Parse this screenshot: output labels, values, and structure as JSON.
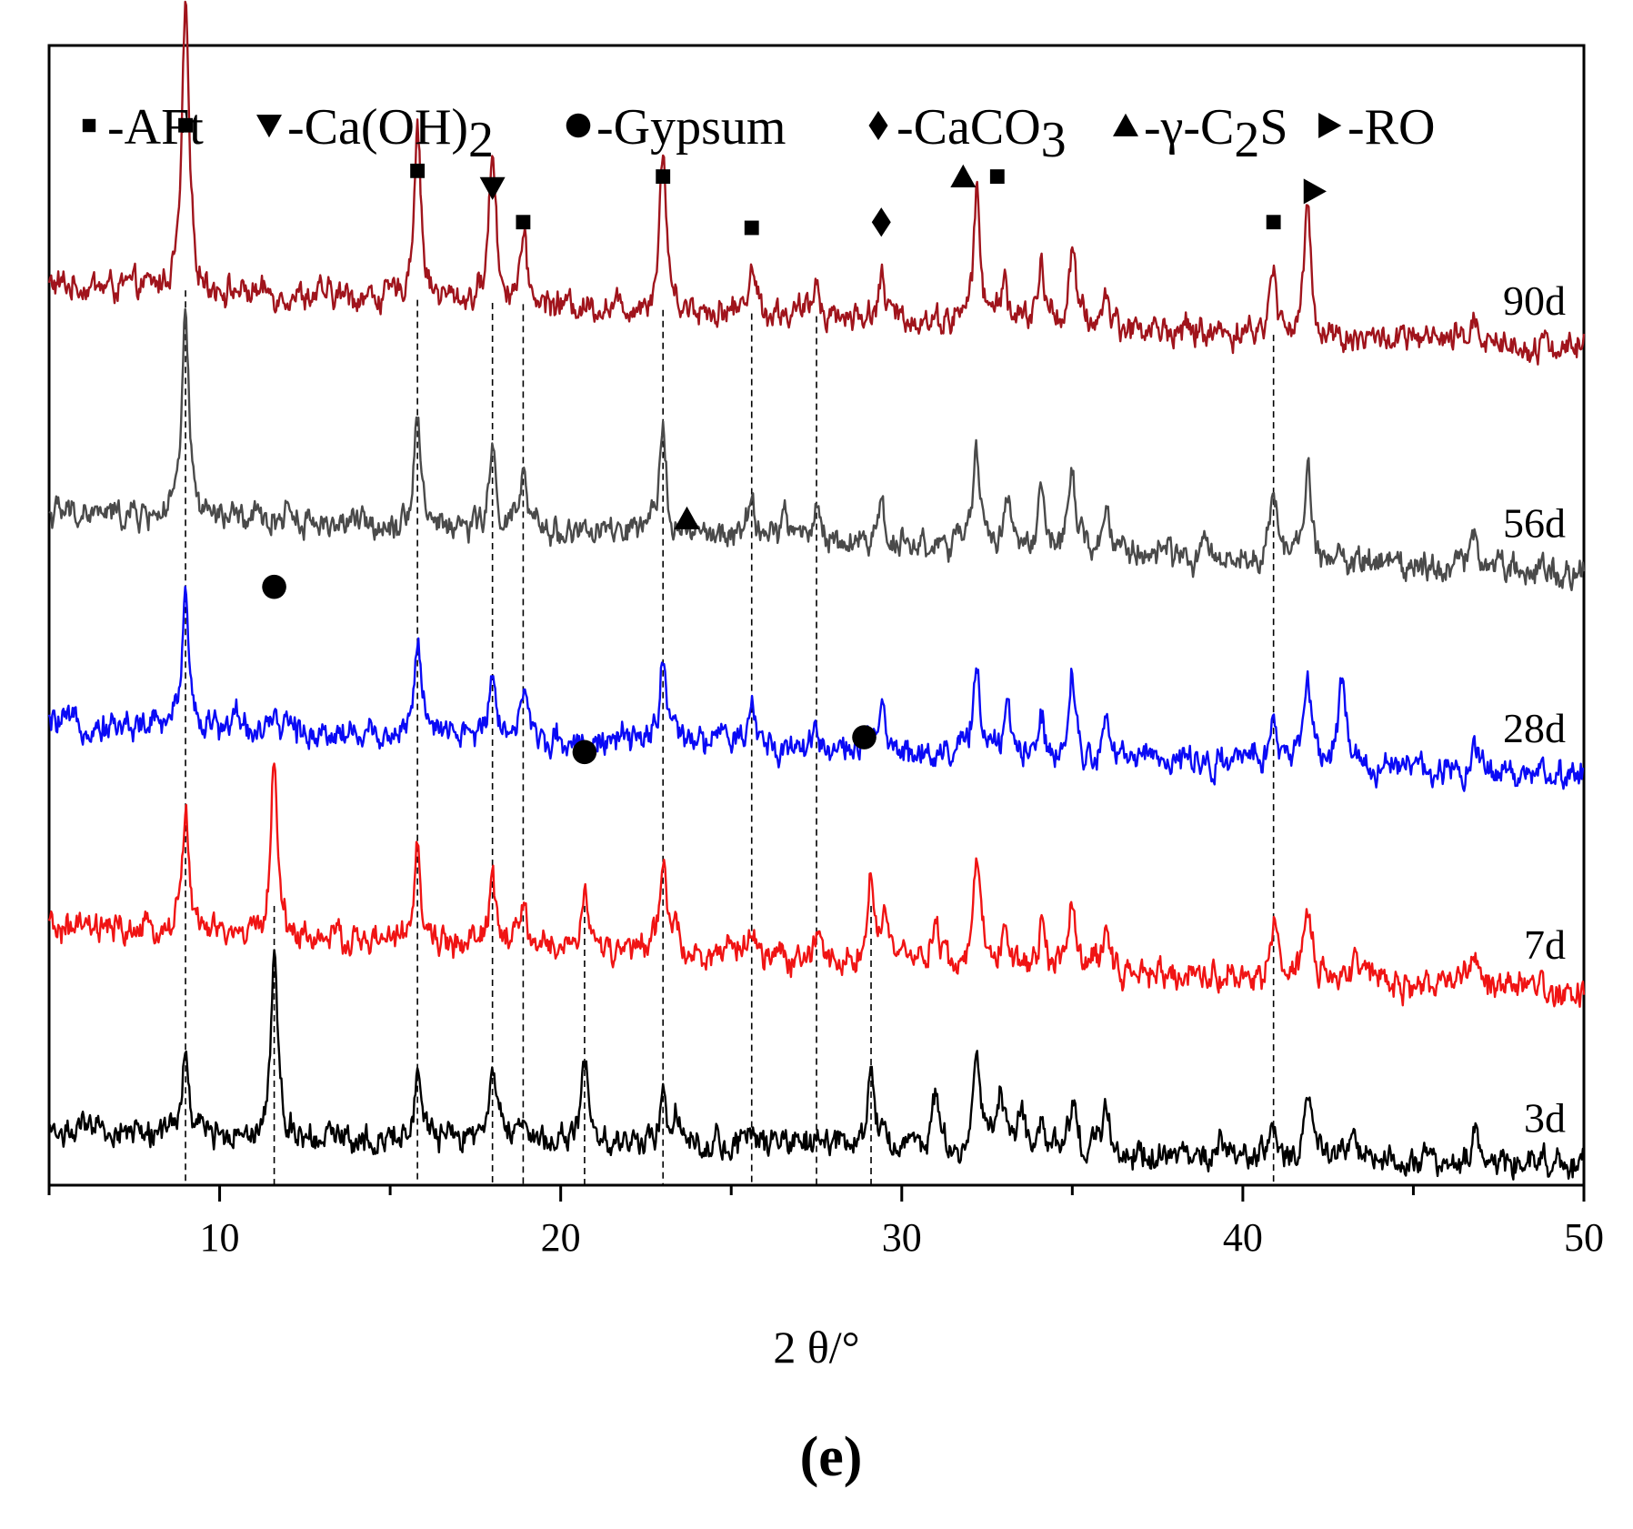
{
  "chart_data": {
    "type": "line",
    "title": "",
    "xlabel": "2 θ/°",
    "ylabel": "",
    "xlim": [
      5,
      50
    ],
    "xticks": [
      10,
      20,
      30,
      40,
      50
    ],
    "xtick_labels": [
      "10",
      "20",
      "30",
      "40",
      "50"
    ],
    "panel_label": "(e)",
    "grid": false,
    "legend_position": "top",
    "legend": [
      {
        "symbol": "square",
        "label": "-AFt"
      },
      {
        "symbol": "triangle-down",
        "label": "-Ca(OH)",
        "sub": "2"
      },
      {
        "symbol": "circle",
        "label": "-Gypsum"
      },
      {
        "symbol": "diamond",
        "label": "-CaCO",
        "sub": "3"
      },
      {
        "symbol": "triangle-up",
        "label": "-γ-C",
        "sub": "2",
        "suffix": "S"
      },
      {
        "symbol": "triangle-right",
        "label": "-RO"
      }
    ],
    "peak_reference_lines_2theta": [
      9.0,
      11.6,
      15.8,
      18.0,
      18.9,
      20.7,
      23.0,
      25.6,
      27.5,
      29.1,
      40.9
    ],
    "series": [
      {
        "name": "90d",
        "color": "#a0141c",
        "baseline": 0.79,
        "slope": 0.055,
        "peaks": [
          [
            9.0,
            0.25
          ],
          [
            15.8,
            0.155
          ],
          [
            18.0,
            0.135
          ],
          [
            18.9,
            0.055
          ],
          [
            23.0,
            0.14
          ],
          [
            25.6,
            0.045
          ],
          [
            27.5,
            0.03
          ],
          [
            29.4,
            0.035
          ],
          [
            32.2,
            0.11
          ],
          [
            33.0,
            0.04
          ],
          [
            34.1,
            0.05
          ],
          [
            35.0,
            0.065
          ],
          [
            36.0,
            0.03
          ],
          [
            40.9,
            0.055
          ],
          [
            41.9,
            0.11
          ],
          [
            46.8,
            0.025
          ]
        ]
      },
      {
        "name": "56d",
        "color": "#4a4a4a",
        "baseline": 0.59,
        "slope": 0.05,
        "peaks": [
          [
            9.0,
            0.175
          ],
          [
            12.0,
            0.015
          ],
          [
            15.8,
            0.1
          ],
          [
            18.0,
            0.065
          ],
          [
            18.9,
            0.045
          ],
          [
            23.0,
            0.1
          ],
          [
            25.6,
            0.035
          ],
          [
            26.6,
            0.025
          ],
          [
            27.5,
            0.03
          ],
          [
            29.4,
            0.035
          ],
          [
            32.2,
            0.085
          ],
          [
            33.1,
            0.045
          ],
          [
            34.1,
            0.04
          ],
          [
            35.0,
            0.065
          ],
          [
            36.0,
            0.035
          ],
          [
            40.9,
            0.055
          ],
          [
            41.9,
            0.08
          ],
          [
            46.8,
            0.03
          ]
        ]
      },
      {
        "name": "28d",
        "color": "#0a0af5",
        "baseline": 0.405,
        "slope": 0.045,
        "peaks": [
          [
            9.0,
            0.125
          ],
          [
            10.5,
            0.015
          ],
          [
            12.0,
            0.012
          ],
          [
            15.8,
            0.085
          ],
          [
            18.0,
            0.065
          ],
          [
            18.9,
            0.045
          ],
          [
            23.0,
            0.08
          ],
          [
            24.6,
            0.015
          ],
          [
            25.6,
            0.035
          ],
          [
            27.5,
            0.02
          ],
          [
            29.4,
            0.035
          ],
          [
            32.2,
            0.08
          ],
          [
            33.1,
            0.035
          ],
          [
            34.1,
            0.035
          ],
          [
            35.0,
            0.07
          ],
          [
            36.0,
            0.025
          ],
          [
            37.2,
            0.012
          ],
          [
            40.9,
            0.045
          ],
          [
            41.9,
            0.08
          ],
          [
            42.9,
            0.08
          ],
          [
            46.8,
            0.025
          ]
        ]
      },
      {
        "name": "7d",
        "color": "#f01414",
        "baseline": 0.225,
        "slope": 0.055,
        "peaks": [
          [
            9.0,
            0.11
          ],
          [
            11.6,
            0.155
          ],
          [
            15.8,
            0.08
          ],
          [
            18.0,
            0.06
          ],
          [
            18.9,
            0.035
          ],
          [
            20.7,
            0.055
          ],
          [
            23.0,
            0.08
          ],
          [
            23.4,
            0.02
          ],
          [
            25.6,
            0.03
          ],
          [
            27.5,
            0.015
          ],
          [
            29.1,
            0.075
          ],
          [
            29.5,
            0.03
          ],
          [
            31.0,
            0.04
          ],
          [
            32.2,
            0.09
          ],
          [
            33.0,
            0.035
          ],
          [
            34.1,
            0.04
          ],
          [
            35.0,
            0.065
          ],
          [
            36.0,
            0.04
          ],
          [
            40.9,
            0.045
          ],
          [
            41.9,
            0.07
          ],
          [
            43.3,
            0.025
          ],
          [
            46.8,
            0.035
          ]
        ]
      },
      {
        "name": "3d",
        "color": "#000000",
        "baseline": 0.048,
        "slope": 0.03,
        "peaks": [
          [
            9.0,
            0.065
          ],
          [
            11.6,
            0.16
          ],
          [
            15.8,
            0.055
          ],
          [
            18.0,
            0.07
          ],
          [
            18.9,
            0.02
          ],
          [
            20.7,
            0.07
          ],
          [
            23.0,
            0.05
          ],
          [
            23.4,
            0.02
          ],
          [
            25.6,
            0.015
          ],
          [
            27.5,
            0.012
          ],
          [
            29.1,
            0.07
          ],
          [
            29.5,
            0.02
          ],
          [
            31.0,
            0.045
          ],
          [
            32.2,
            0.08
          ],
          [
            32.9,
            0.06
          ],
          [
            33.5,
            0.04
          ],
          [
            34.1,
            0.025
          ],
          [
            35.0,
            0.04
          ],
          [
            36.0,
            0.035
          ],
          [
            39.4,
            0.015
          ],
          [
            40.9,
            0.03
          ],
          [
            41.9,
            0.055
          ],
          [
            43.3,
            0.012
          ],
          [
            46.8,
            0.025
          ]
        ]
      }
    ],
    "annotations": [
      {
        "symbol": "square",
        "x": 9.0,
        "y": 0.93
      },
      {
        "symbol": "square",
        "x": 15.8,
        "y": 0.89
      },
      {
        "symbol": "triangle-down",
        "x": 18.0,
        "y": 0.875
      },
      {
        "symbol": "square",
        "x": 18.9,
        "y": 0.845
      },
      {
        "symbol": "square",
        "x": 23.0,
        "y": 0.885
      },
      {
        "symbol": "square",
        "x": 25.6,
        "y": 0.84
      },
      {
        "symbol": "diamond",
        "x": 29.4,
        "y": 0.845
      },
      {
        "symbol": "triangle-up",
        "x": 31.8,
        "y": 0.885
      },
      {
        "symbol": "square",
        "x": 32.8,
        "y": 0.885
      },
      {
        "symbol": "square",
        "x": 40.9,
        "y": 0.845
      },
      {
        "symbol": "triangle-right",
        "x": 42.1,
        "y": 0.872
      },
      {
        "symbol": "triangle-up",
        "x": 23.7,
        "y": 0.585
      },
      {
        "symbol": "circle",
        "x": 11.6,
        "y": 0.525
      },
      {
        "symbol": "circle",
        "x": 20.7,
        "y": 0.38
      },
      {
        "symbol": "circle",
        "x": 28.9,
        "y": 0.393
      }
    ]
  }
}
